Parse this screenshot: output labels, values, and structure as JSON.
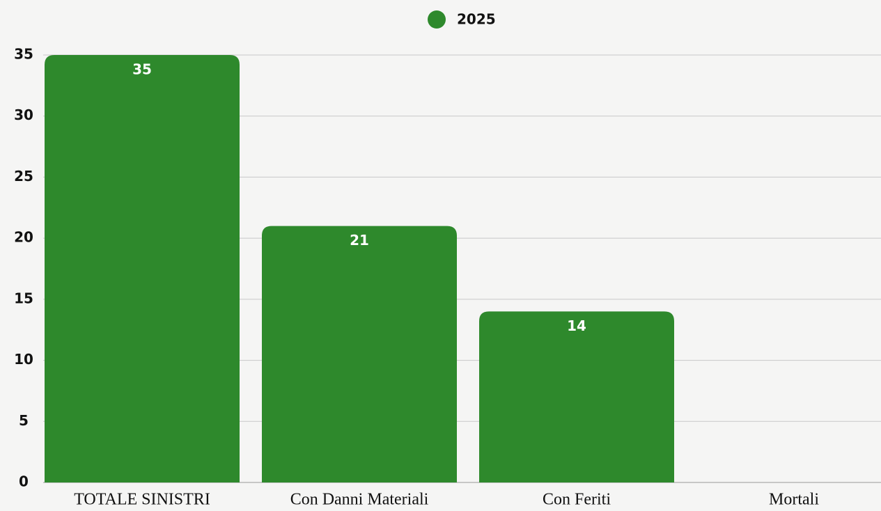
{
  "chart_data": {
    "type": "bar",
    "categories": [
      "TOTALE SINISTRI",
      "Con Danni Materiali",
      "Con Feriti",
      "Mortali"
    ],
    "series": [
      {
        "name": "2025",
        "color": "#2e892c",
        "values": [
          35,
          21,
          14,
          0
        ]
      }
    ],
    "ylim": [
      0,
      35
    ],
    "yticks": [
      0,
      5,
      10,
      15,
      20,
      25,
      30,
      35
    ],
    "grid": true,
    "legend": "top"
  }
}
